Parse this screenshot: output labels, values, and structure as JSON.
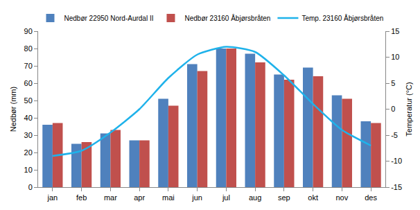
{
  "chart_data": {
    "type": "bar",
    "y_label": "Nedbør (mm)",
    "y2_label": "Temperatur (°C)",
    "categories": [
      "jan",
      "feb",
      "mar",
      "apr",
      "mai",
      "jun",
      "jul",
      "aug",
      "sep",
      "okt",
      "nov",
      "des"
    ],
    "series": [
      {
        "name": "Nedbør 22950 Nord-Aurdal II",
        "type": "bar",
        "color": "#4F81BD",
        "values": [
          36,
          25,
          31,
          27,
          51,
          71,
          80,
          77,
          65,
          69,
          53,
          38
        ]
      },
      {
        "name": "Nedbør 23160 Åbjørsbråten",
        "type": "bar",
        "color": "#C0504D",
        "values": [
          37,
          26,
          33,
          27,
          47,
          67,
          80,
          72,
          62,
          64,
          51,
          37
        ]
      },
      {
        "name": "Temp. 23160 Åbjørsbråten",
        "type": "line",
        "axis": "y2",
        "color": "#1FB2EA",
        "marker": "none",
        "values": [
          -9,
          -8,
          -4.5,
          0,
          6,
          10.5,
          12,
          11,
          6.5,
          1,
          -4,
          -7
        ]
      }
    ],
    "ylim": [
      0,
      90
    ],
    "yticks": [
      0,
      10,
      20,
      30,
      40,
      50,
      60,
      70,
      80,
      90
    ],
    "y2lim": [
      -15,
      15
    ],
    "y2ticks": [
      -15,
      -10,
      -5,
      0,
      5,
      10,
      15
    ],
    "grid": false,
    "legend": "top"
  }
}
